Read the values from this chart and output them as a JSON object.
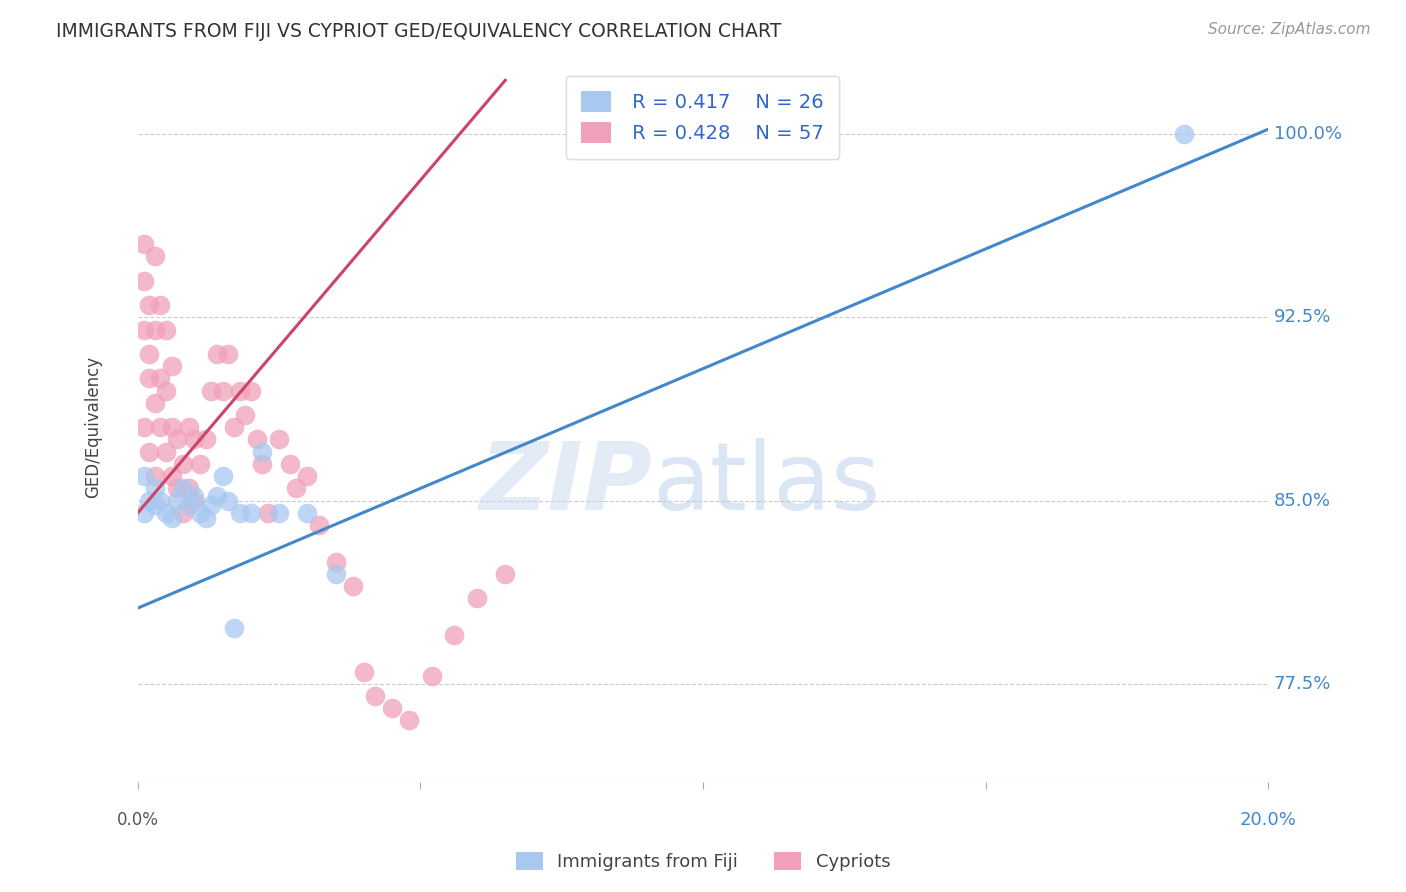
{
  "title": "IMMIGRANTS FROM FIJI VS CYPRIOT GED/EQUIVALENCY CORRELATION CHART",
  "source": "Source: ZipAtlas.com",
  "ylabel": "GED/Equivalency",
  "legend_r_fiji": "R = 0.417",
  "legend_n_fiji": "N = 26",
  "legend_r_cypriot": "R = 0.428",
  "legend_n_cypriot": "N = 57",
  "fiji_color": "#a8c8f0",
  "cypriot_color": "#f0a0b8",
  "fiji_line_color": "#4488cc",
  "cypriot_line_color": "#cc4466",
  "watermark_zip": "ZIP",
  "watermark_atlas": "atlas",
  "xmin": 0.0,
  "xmax": 0.2,
  "ymin": 0.735,
  "ymax": 1.025,
  "yticks": [
    0.775,
    0.85,
    0.925,
    1.0
  ],
  "ytick_labels": [
    "77.5%",
    "85.0%",
    "92.5%",
    "100.0%"
  ],
  "fiji_line_x": [
    0.0,
    0.2
  ],
  "fiji_line_y": [
    0.806,
    1.002
  ],
  "cyp_line_x": [
    0.0,
    0.065
  ],
  "cyp_line_y": [
    0.845,
    1.022
  ],
  "fiji_scatter_x": [
    0.001,
    0.001,
    0.002,
    0.003,
    0.003,
    0.004,
    0.005,
    0.006,
    0.007,
    0.008,
    0.009,
    0.01,
    0.011,
    0.012,
    0.013,
    0.014,
    0.015,
    0.016,
    0.017,
    0.018,
    0.02,
    0.022,
    0.025,
    0.03,
    0.035,
    0.185
  ],
  "fiji_scatter_y": [
    0.845,
    0.86,
    0.85,
    0.848,
    0.855,
    0.85,
    0.845,
    0.843,
    0.85,
    0.855,
    0.848,
    0.852,
    0.845,
    0.843,
    0.848,
    0.852,
    0.86,
    0.85,
    0.798,
    0.845,
    0.845,
    0.87,
    0.845,
    0.845,
    0.82,
    1.0
  ],
  "cyp_scatter_x": [
    0.001,
    0.001,
    0.001,
    0.001,
    0.002,
    0.002,
    0.002,
    0.002,
    0.003,
    0.003,
    0.003,
    0.003,
    0.004,
    0.004,
    0.004,
    0.005,
    0.005,
    0.005,
    0.006,
    0.006,
    0.006,
    0.007,
    0.007,
    0.008,
    0.008,
    0.009,
    0.009,
    0.01,
    0.01,
    0.011,
    0.012,
    0.013,
    0.014,
    0.015,
    0.016,
    0.017,
    0.018,
    0.019,
    0.02,
    0.021,
    0.022,
    0.023,
    0.025,
    0.027,
    0.028,
    0.03,
    0.032,
    0.035,
    0.038,
    0.04,
    0.042,
    0.045,
    0.048,
    0.052,
    0.056,
    0.06,
    0.065
  ],
  "cyp_scatter_y": [
    0.88,
    0.92,
    0.955,
    0.94,
    0.87,
    0.91,
    0.93,
    0.9,
    0.86,
    0.89,
    0.92,
    0.95,
    0.88,
    0.9,
    0.93,
    0.87,
    0.895,
    0.92,
    0.86,
    0.88,
    0.905,
    0.855,
    0.875,
    0.845,
    0.865,
    0.855,
    0.88,
    0.85,
    0.875,
    0.865,
    0.875,
    0.895,
    0.91,
    0.895,
    0.91,
    0.88,
    0.895,
    0.885,
    0.895,
    0.875,
    0.865,
    0.845,
    0.875,
    0.865,
    0.855,
    0.86,
    0.84,
    0.825,
    0.815,
    0.78,
    0.77,
    0.765,
    0.76,
    0.778,
    0.795,
    0.81,
    0.82
  ]
}
